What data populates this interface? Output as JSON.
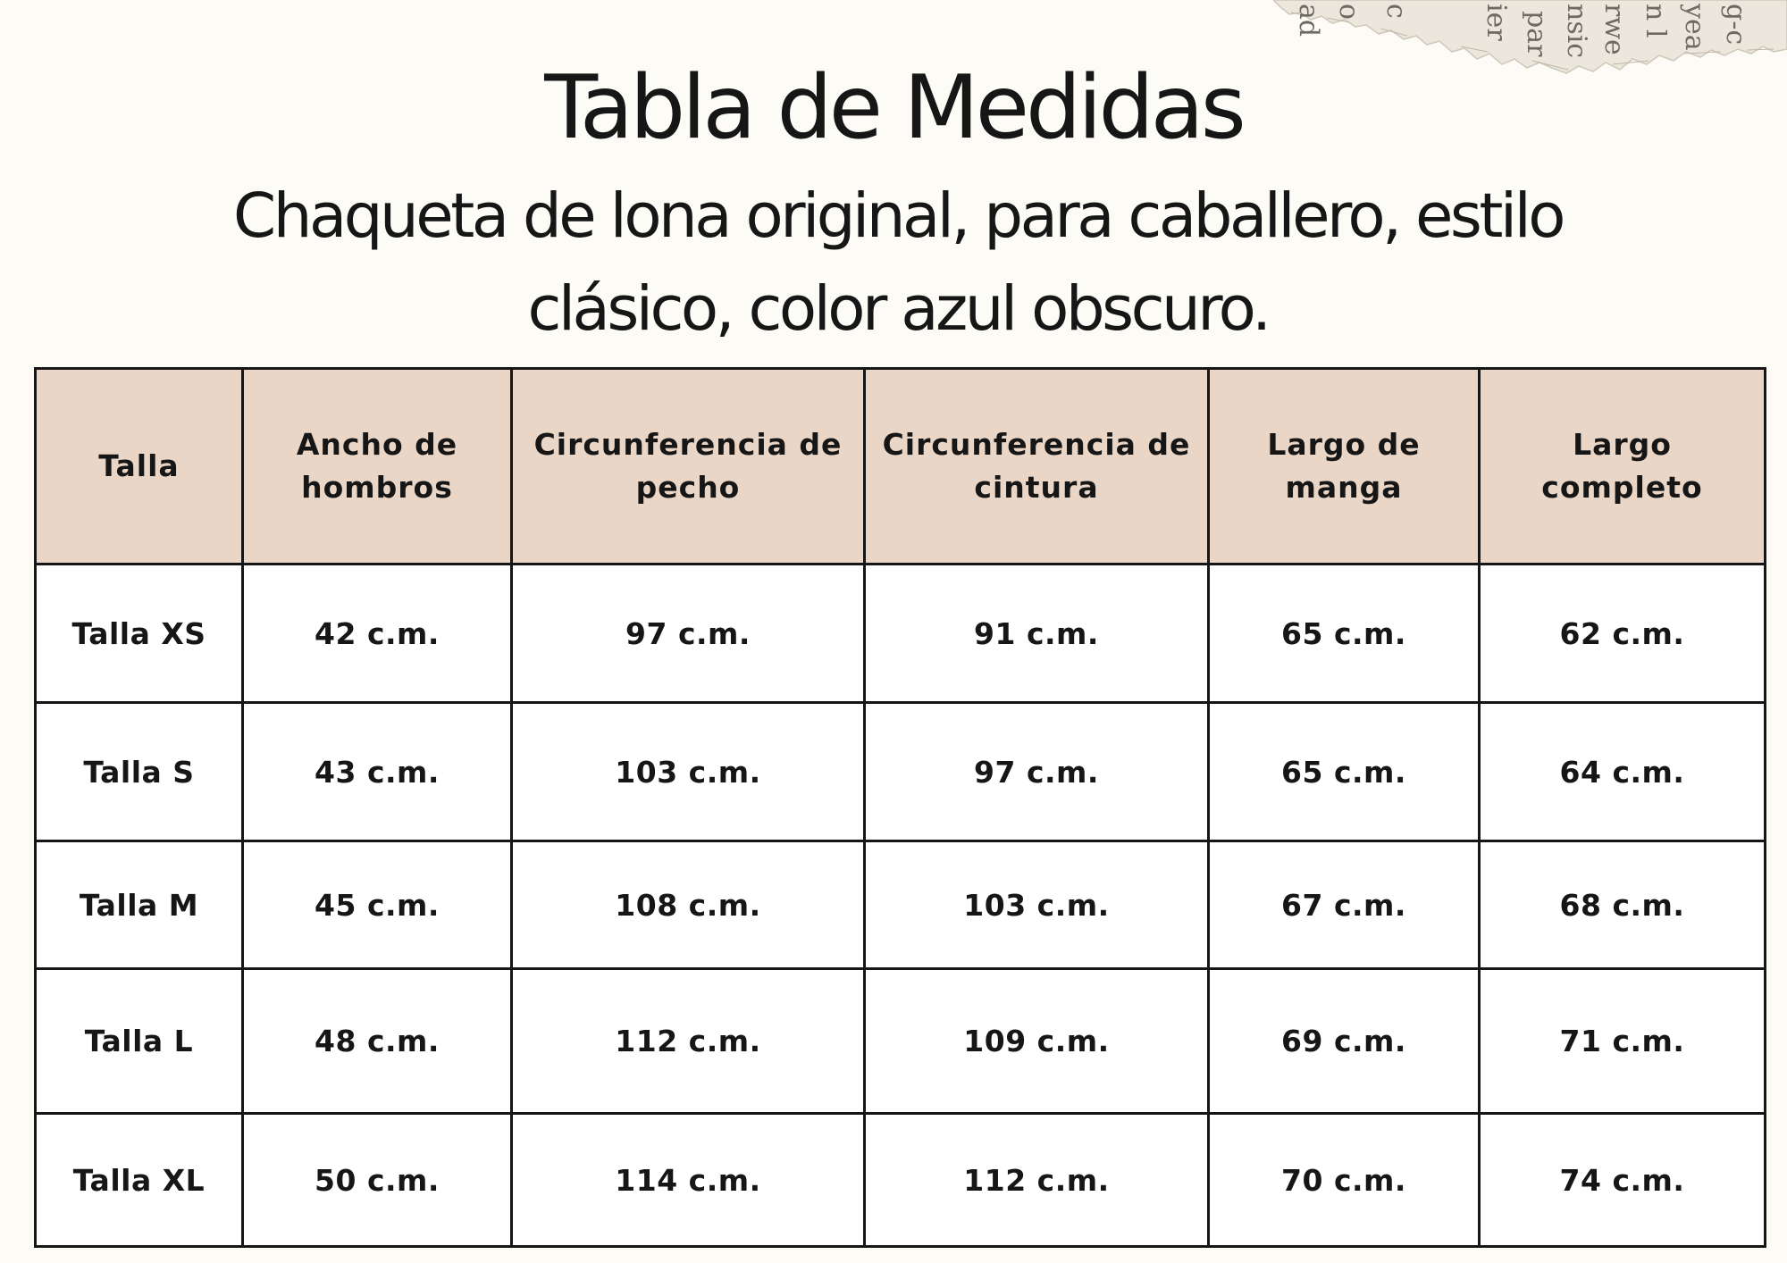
{
  "document": {
    "title": "Tabla de Medidas",
    "subtitle": "Chaqueta de lona original, para caballero, estilo clásico, color azul obscuro."
  },
  "decoration": {
    "icon": "torn-newspaper-scrap",
    "text_fragments": [
      "ad",
      "o",
      "c",
      "ier",
      "par",
      "nsic",
      "rwe",
      "n l",
      "yea",
      "g-c"
    ]
  },
  "table": {
    "headers": [
      "Talla",
      "Ancho de hombros",
      "Circunferencia de pecho",
      "Circunferencia de cintura",
      "Largo de manga",
      "Largo completo"
    ],
    "rows": [
      [
        "Talla XS",
        "42 c.m.",
        "97 c.m.",
        "91 c.m.",
        "65 c.m.",
        "62 c.m."
      ],
      [
        "Talla S",
        "43 c.m.",
        "103 c.m.",
        "97 c.m.",
        "65 c.m.",
        "64 c.m."
      ],
      [
        "Talla M",
        "45 c.m.",
        "108 c.m.",
        "103 c.m.",
        "67 c.m.",
        "68 c.m."
      ],
      [
        "Talla L",
        "48 c.m.",
        "112 c.m.",
        "109 c.m.",
        "69 c.m.",
        "71 c.m."
      ],
      [
        "Talla XL",
        "50 c.m.",
        "114 c.m.",
        "112 c.m.",
        "70 c.m.",
        "74 c.m."
      ]
    ]
  },
  "colors": {
    "background": "#fdfbf6",
    "header_fill": "#ead6c6",
    "cell_fill": "#ffffff",
    "border": "#161616",
    "text": "#161616"
  }
}
